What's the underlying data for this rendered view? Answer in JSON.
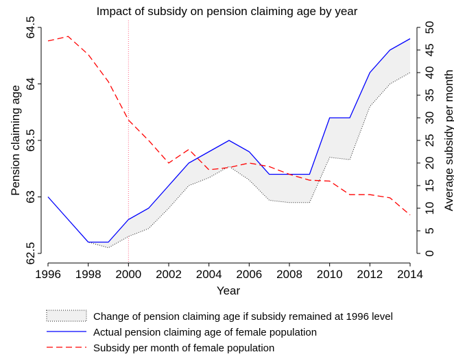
{
  "chart_data": {
    "type": "line",
    "title": "Impact of subsidy on pension claiming age by year",
    "x_label": "Year",
    "y_label": "Pension claiming age",
    "y2_label": "Average subsidy per month",
    "x": [
      1996,
      1997,
      1998,
      1999,
      2000,
      2001,
      2002,
      2003,
      2004,
      2005,
      2006,
      2007,
      2008,
      2009,
      2010,
      2011,
      2012,
      2013,
      2014
    ],
    "xlim": [
      1996,
      2014
    ],
    "xticks": [
      1996,
      1998,
      2000,
      2002,
      2004,
      2006,
      2008,
      2010,
      2012,
      2014
    ],
    "ylim": [
      62.5,
      64.5
    ],
    "yticks": [
      62.5,
      63,
      63.5,
      64,
      64.5
    ],
    "y2lim": [
      0,
      50
    ],
    "y2ticks": [
      0,
      5,
      10,
      15,
      20,
      25,
      30,
      35,
      40,
      45,
      50
    ],
    "vline_x": 2000,
    "series": [
      {
        "name": "Change of pension claiming age if subsidy remained at 1996 level",
        "color": "#f0f0f0",
        "style": "band",
        "values": [
          63.0,
          62.8,
          62.6,
          62.55,
          62.65,
          62.72,
          62.9,
          63.1,
          63.17,
          63.27,
          63.15,
          62.97,
          62.95,
          62.95,
          63.35,
          63.33,
          63.8,
          64.0,
          64.1
        ]
      },
      {
        "name": "Actual pension claiming age of female population",
        "color": "#0000ff",
        "style": "solid",
        "values": [
          63.0,
          62.8,
          62.6,
          62.6,
          62.8,
          62.9,
          63.1,
          63.3,
          63.4,
          63.5,
          63.4,
          63.2,
          63.2,
          63.2,
          63.7,
          63.7,
          64.1,
          64.3,
          64.4
        ]
      },
      {
        "name": "Subsidy per month of female population",
        "color": "#ff0000",
        "style": "dashed",
        "axis": "y2",
        "values": [
          47,
          48,
          44,
          38,
          29.5,
          25,
          20,
          23,
          18.5,
          19,
          20,
          19.2,
          17.5,
          16.2,
          16,
          13,
          13,
          12.3,
          8.5
        ]
      }
    ]
  }
}
